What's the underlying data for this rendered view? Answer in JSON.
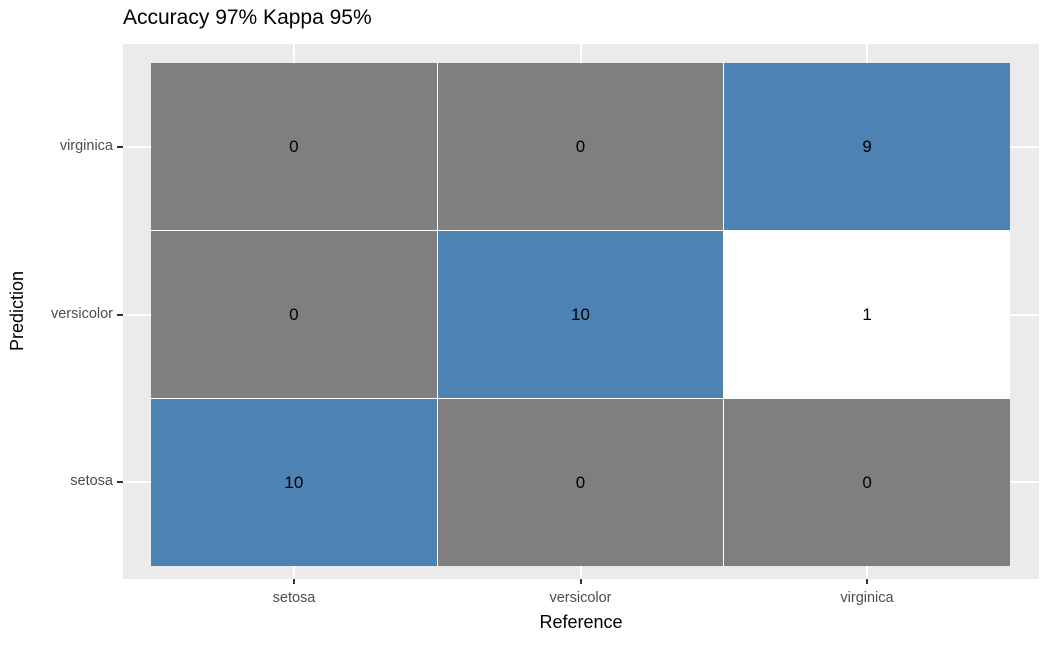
{
  "chart_data": {
    "type": "heatmap",
    "title": "Accuracy 97% Kappa 95%",
    "xlabel": "Reference",
    "ylabel": "Prediction",
    "x_categories": [
      "setosa",
      "versicolor",
      "virginica"
    ],
    "y_categories_top_to_bottom": [
      "virginica",
      "versicolor",
      "setosa"
    ],
    "legend_position": "none",
    "grid": "white major gridlines at category centers on gray panel",
    "matrix_rows_top_to_bottom": [
      {
        "prediction": "virginica",
        "cells": [
          {
            "value": "0",
            "fill": "gray"
          },
          {
            "value": "0",
            "fill": "gray"
          },
          {
            "value": "9",
            "fill": "blue"
          }
        ]
      },
      {
        "prediction": "versicolor",
        "cells": [
          {
            "value": "0",
            "fill": "gray"
          },
          {
            "value": "10",
            "fill": "blue"
          },
          {
            "value": "1",
            "fill": "white"
          }
        ]
      },
      {
        "prediction": "setosa",
        "cells": [
          {
            "value": "10",
            "fill": "blue"
          },
          {
            "value": "0",
            "fill": "gray"
          },
          {
            "value": "0",
            "fill": "gray"
          }
        ]
      }
    ],
    "colors": {
      "blue": "#4D82B4",
      "gray": "#7F7F7F",
      "white": "#FFFFFF",
      "panel_background": "#EBEBEB",
      "gridline": "#FFFFFF",
      "tick_mark": "#333333",
      "axis_tick_text": "#4D4D4D",
      "axis_title_text": "#000000",
      "title_text": "#000000"
    }
  }
}
